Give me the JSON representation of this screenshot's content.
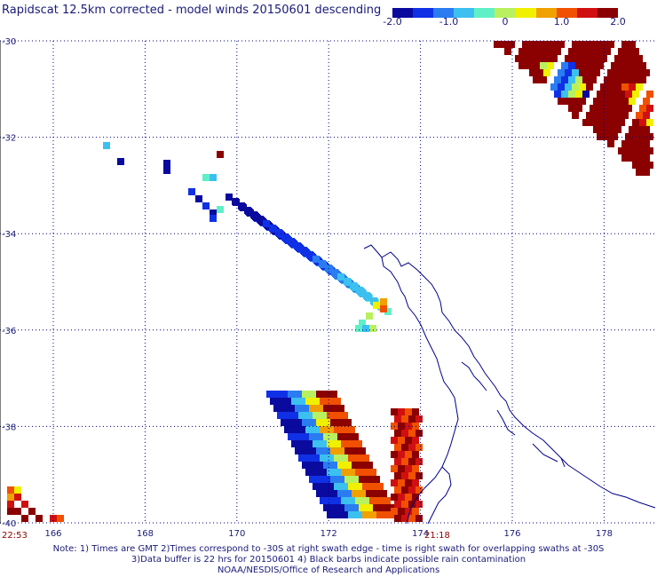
{
  "title": "Rapidscat 12.5km corrected - model winds 20150601 descending",
  "colorbar": {
    "ticks": [
      "-2.0",
      "-1.0",
      "0",
      "1.0",
      "2.0"
    ],
    "tick_values": [
      -2.0,
      -1.0,
      0,
      1.0,
      2.0
    ],
    "colors": [
      "#0a0a9e",
      "#1030e6",
      "#2a7cf0",
      "#3cc0f0",
      "#60f0c8",
      "#b8f060",
      "#f0f000",
      "#f0a000",
      "#f05000",
      "#d01010",
      "#8b0000"
    ]
  },
  "map": {
    "lat_ticks": [
      "-30",
      "-32",
      "-34",
      "-36",
      "-38",
      "-40"
    ],
    "lon_ticks": [
      "166",
      "168",
      "170",
      "172",
      "174",
      "176",
      "178"
    ],
    "lat_range": [
      -40.3,
      -29.8
    ],
    "lon_range": [
      165.0,
      179.0
    ],
    "grid": "dotted",
    "coastline_color": "#00008b"
  },
  "swath_times": [
    "22:53",
    "21:18"
  ],
  "footer": {
    "line1": "Note: 1) Times are GMT 2)Times correspond to -30S at right swath edge - time is right swath for overlapping swaths at -30S",
    "line2": "3)Data buffer is 22 hrs for 20150601 4) Black barbs indicate possible rain contamination",
    "line3": "NOAA/NESDIS/Office of Research and Applications"
  }
}
